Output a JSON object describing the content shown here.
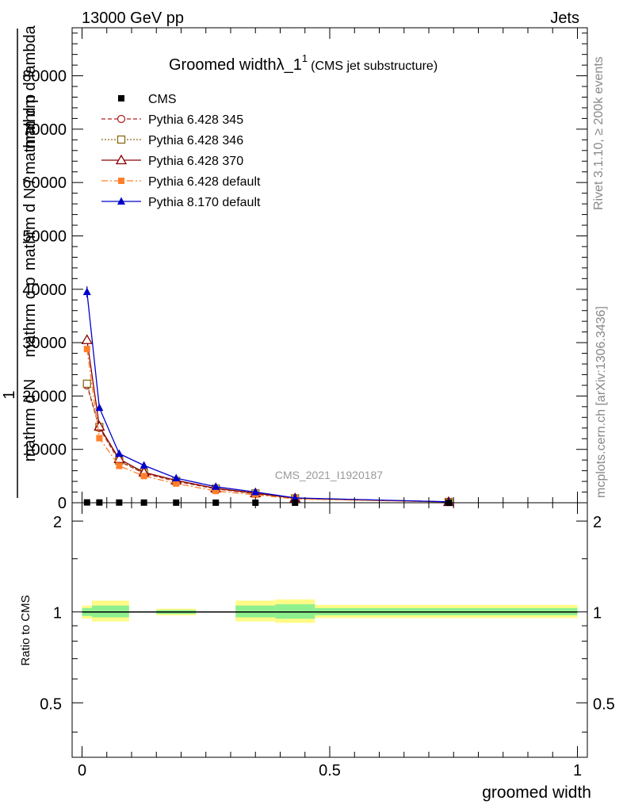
{
  "header": {
    "left": "13000 GeV pp",
    "right": "Jets"
  },
  "plot_title": {
    "main": "Groomed width",
    "symbol": "λ_1",
    "superscript": "1",
    "sub": "(CMS jet substructure)"
  },
  "side_labels": {
    "rivet": "Rivet 3.1.10, ≥ 200k events",
    "mcplots": "mcplots.cern.ch [arXiv:1306.3436]"
  },
  "watermark": "CMS_2021_I1920187",
  "colors": {
    "cms": "#000000",
    "p345": "#b22222",
    "p346": "#8b6914",
    "p370": "#8b0000",
    "p6def": "#ff7f2a",
    "p8def": "#0000cc",
    "band_inner": "#8ef08e",
    "band_outer": "#fffb86"
  },
  "chart_data": [
    {
      "type": "line",
      "panel": "main",
      "title": "Groomed width λ_1^1 (CMS jet substructure)",
      "ylabel": "1 / mathrm d N / mathrm d N / mathrm d p_T mathrm d lambda",
      "ylabel_parts": [
        "1",
        "mathrm d N",
        "mathrm d N / mathrm d p",
        "mathrm d p",
        "mathrm d lambda"
      ],
      "xlim": [
        -0.02,
        1.02
      ],
      "ylim": [
        0,
        89000
      ],
      "yticks": [
        0,
        10000,
        20000,
        30000,
        40000,
        50000,
        60000,
        70000,
        80000
      ],
      "ytick_labels": [
        "0",
        "10000",
        "20000",
        "30000",
        "40000",
        "50000",
        "60000",
        "70000",
        "80000"
      ],
      "legend_position": "top-left",
      "series": [
        {
          "name": "CMS",
          "style": "cms",
          "x": [
            0.01,
            0.035,
            0.075,
            0.125,
            0.19,
            0.27,
            0.35,
            0.43,
            0.74
          ],
          "y": [
            60,
            50,
            40,
            30,
            20,
            15,
            10,
            8,
            3
          ]
        },
        {
          "name": "Pythia 6.428 345",
          "style": "p345",
          "x": [
            0.01,
            0.035,
            0.075,
            0.125,
            0.19,
            0.27,
            0.35,
            0.43,
            0.74
          ],
          "y": [
            22000,
            14000,
            7800,
            5500,
            4000,
            2600,
            1700,
            800,
            150
          ]
        },
        {
          "name": "Pythia 6.428 346",
          "style": "p346",
          "x": [
            0.01,
            0.035,
            0.075,
            0.125,
            0.19,
            0.27,
            0.35,
            0.43,
            0.74
          ],
          "y": [
            22300,
            14200,
            7900,
            5600,
            4100,
            2650,
            1750,
            820,
            150
          ]
        },
        {
          "name": "Pythia 6.428 370",
          "style": "p370",
          "x": [
            0.01,
            0.035,
            0.075,
            0.125,
            0.19,
            0.27,
            0.35,
            0.43,
            0.74
          ],
          "y": [
            30500,
            14300,
            8200,
            5700,
            4200,
            2700,
            1800,
            850,
            160
          ]
        },
        {
          "name": "Pythia 6.428 default",
          "style": "p6def",
          "x": [
            0.01,
            0.035,
            0.075,
            0.125,
            0.19,
            0.27,
            0.35,
            0.43,
            0.74
          ],
          "y": [
            28800,
            12100,
            6900,
            5000,
            3600,
            2200,
            1500,
            700,
            130
          ]
        },
        {
          "name": "Pythia 8.170 default",
          "style": "p8def",
          "x": [
            0.01,
            0.035,
            0.075,
            0.125,
            0.19,
            0.27,
            0.35,
            0.43,
            0.74
          ],
          "y": [
            39500,
            17800,
            9200,
            7000,
            4600,
            3000,
            2000,
            900,
            180
          ]
        }
      ]
    },
    {
      "type": "line",
      "panel": "ratio",
      "ylabel": "Ratio to CMS",
      "xlabel": "groomed width",
      "xlim": [
        -0.02,
        1.02
      ],
      "ylim": [
        0.33,
        2.3
      ],
      "log_y": true,
      "yticks": [
        0.5,
        1,
        2
      ],
      "ytick_labels": [
        "0.5",
        "1",
        "2"
      ],
      "xticks": [
        0,
        0.5,
        1
      ],
      "xtick_labels": [
        "0",
        "0.5",
        "1"
      ],
      "reference": 1,
      "bands": [
        {
          "x0": 0.0,
          "x1": 0.02,
          "inner": [
            0.97,
            1.03
          ],
          "outer": [
            0.95,
            1.05
          ]
        },
        {
          "x0": 0.02,
          "x1": 0.095,
          "inner": [
            0.96,
            1.05
          ],
          "outer": [
            0.93,
            1.09
          ]
        },
        {
          "x0": 0.15,
          "x1": 0.23,
          "inner": [
            0.985,
            1.015
          ],
          "outer": [
            0.975,
            1.025
          ]
        },
        {
          "x0": 0.31,
          "x1": 0.39,
          "inner": [
            0.96,
            1.05
          ],
          "outer": [
            0.93,
            1.09
          ]
        },
        {
          "x0": 0.39,
          "x1": 0.47,
          "inner": [
            0.95,
            1.06
          ],
          "outer": [
            0.92,
            1.1
          ]
        },
        {
          "x0": 0.47,
          "x1": 1.0,
          "inner": [
            0.975,
            1.03
          ],
          "outer": [
            0.955,
            1.055
          ]
        }
      ]
    }
  ]
}
